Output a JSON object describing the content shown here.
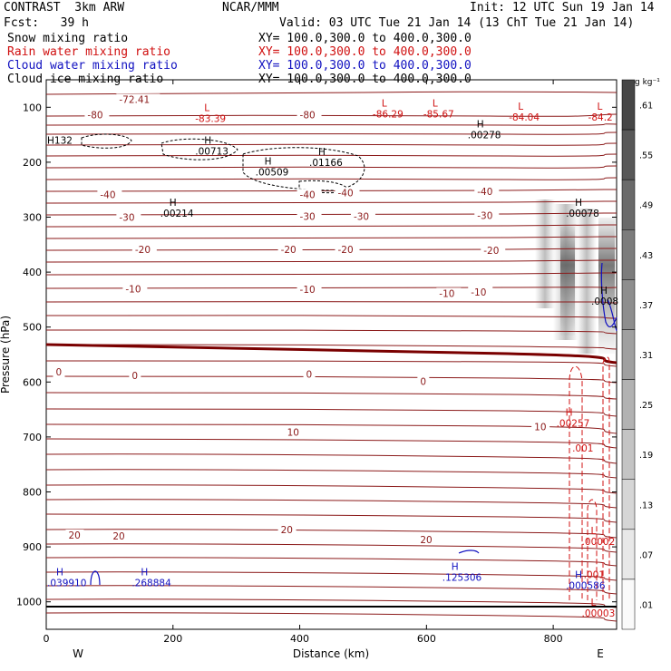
{
  "header": {
    "title_left": "CONTRAST  3km ARW",
    "title_center": "NCAR/MMM",
    "init": "Init: 12 UTC Sun 19 Jan 14",
    "fcst": "Fcst:   39 h",
    "valid": "Valid: 03 UTC Tue 21 Jan 14 (13 ChT Tue 21 Jan 14)",
    "fields": [
      {
        "name": "Snow mixing ratio",
        "xy": "XY= 100.0,300.0 to 400.0,300.0",
        "color": "#000000"
      },
      {
        "name": "Rain water mixing ratio",
        "xy": "XY= 100.0,300.0 to 400.0,300.0",
        "color": "#d01010"
      },
      {
        "name": "Cloud water mixing ratio",
        "xy": "XY= 100.0,300.0 to 400.0,300.0",
        "color": "#1010c0"
      },
      {
        "name": "Cloud ice mixing ratio",
        "xy": "XY= 100.0,300.0 to 400.0,300.0",
        "color": "#000000"
      }
    ]
  },
  "chart_data": {
    "type": "line",
    "xlabel": "Distance (km)",
    "ylabel": "Pressure (hPa)",
    "xlim": [
      0,
      900
    ],
    "ylim": [
      1050,
      50
    ],
    "x_ticks": [
      "0",
      "200",
      "400",
      "600",
      "800"
    ],
    "y_ticks": [
      "100",
      "200",
      "300",
      "400",
      "500",
      "600",
      "700",
      "800",
      "900",
      "1000"
    ],
    "x_end_labels": {
      "left": "W",
      "right": "E"
    },
    "colorbar": {
      "unit": "g kg⁻¹",
      "labels": [
        ".61",
        ".55",
        ".49",
        ".43",
        ".37",
        ".31",
        ".25",
        ".19",
        ".13",
        ".07",
        ".01"
      ]
    },
    "temperature_contour_labels": [
      {
        "text": "-72.41",
        "x": 115,
        "p": 87
      },
      {
        "text": "-80",
        "x": 65,
        "p": 115
      },
      {
        "text": "-80",
        "x": 400,
        "p": 115
      },
      {
        "text": "-40",
        "x": 85,
        "p": 260
      },
      {
        "text": "-40",
        "x": 400,
        "p": 260
      },
      {
        "text": "-40",
        "x": 460,
        "p": 257
      },
      {
        "text": "-40",
        "x": 680,
        "p": 255
      },
      {
        "text": "-30",
        "x": 115,
        "p": 302
      },
      {
        "text": "-30",
        "x": 400,
        "p": 300
      },
      {
        "text": "-30",
        "x": 485,
        "p": 300
      },
      {
        "text": "-30",
        "x": 680,
        "p": 298
      },
      {
        "text": "-20",
        "x": 140,
        "p": 360
      },
      {
        "text": "-20",
        "x": 370,
        "p": 360
      },
      {
        "text": "-20",
        "x": 460,
        "p": 360
      },
      {
        "text": "-20",
        "x": 690,
        "p": 362
      },
      {
        "text": "-10",
        "x": 125,
        "p": 432
      },
      {
        "text": "-10",
        "x": 400,
        "p": 433
      },
      {
        "text": "-10",
        "x": 620,
        "p": 440
      },
      {
        "text": "-10",
        "x": 670,
        "p": 438
      },
      {
        "text": "0",
        "x": 15,
        "p": 583
      },
      {
        "text": "0",
        "x": 135,
        "p": 590
      },
      {
        "text": "0",
        "x": 410,
        "p": 587
      },
      {
        "text": "0",
        "x": 590,
        "p": 600
      },
      {
        "text": "10",
        "x": 380,
        "p": 693
      },
      {
        "text": "10",
        "x": 770,
        "p": 683
      },
      {
        "text": "20",
        "x": 35,
        "p": 880
      },
      {
        "text": "20",
        "x": 105,
        "p": 882
      },
      {
        "text": "20",
        "x": 370,
        "p": 870
      },
      {
        "text": "20",
        "x": 590,
        "p": 888
      }
    ],
    "extrema_labels": [
      {
        "kind": "L",
        "value": "-83.39",
        "x": 235,
        "p": 110,
        "color": "#d01010"
      },
      {
        "kind": "L",
        "value": "-86.29",
        "x": 515,
        "p": 102,
        "color": "#d01010"
      },
      {
        "kind": "L",
        "value": "-85.67",
        "x": 595,
        "p": 102,
        "color": "#d01010"
      },
      {
        "kind": "L",
        "value": "-84.04",
        "x": 730,
        "p": 108,
        "color": "#d01010"
      },
      {
        "kind": "L",
        "value": "-84.2",
        "x": 855,
        "p": 108,
        "color": "#d01010"
      },
      {
        "kind": "",
        "value": "H132",
        "x": 0,
        "p": 150,
        "color": "#000000"
      },
      {
        "kind": "H",
        "value": ".00278",
        "x": 665,
        "p": 140,
        "color": "#000000"
      },
      {
        "kind": "H",
        "value": ".00713",
        "x": 235,
        "p": 170,
        "color": "#000000"
      },
      {
        "kind": "H",
        "value": ".01166",
        "x": 415,
        "p": 190,
        "color": "#000000"
      },
      {
        "kind": "H",
        "value": ".00509",
        "x": 330,
        "p": 208,
        "color": "#000000"
      },
      {
        "kind": "H",
        "value": ".00214",
        "x": 180,
        "p": 283,
        "color": "#000000"
      },
      {
        "kind": "H",
        "value": ".00078",
        "x": 820,
        "p": 283,
        "color": "#000000"
      },
      {
        "kind": "H",
        "value": ".0008",
        "x": 860,
        "p": 443,
        "color": "#000000"
      },
      {
        "kind": "H",
        "value": ".00257",
        "x": 805,
        "p": 665,
        "color": "#d01010"
      },
      {
        "kind": "",
        "value": ".001",
        "x": 830,
        "p": 710,
        "color": "#d01010"
      },
      {
        "kind": "L",
        "value": ".00002",
        "x": 845,
        "p": 880,
        "color": "#d01010"
      },
      {
        "kind": "",
        "value": ".001",
        "x": 848,
        "p": 940,
        "color": "#d01010"
      },
      {
        "kind": "L",
        "value": ".00003",
        "x": 845,
        "p": 1010,
        "color": "#d01010"
      },
      {
        "kind": "H",
        "value": ".039910",
        "x": 0,
        "p": 955,
        "color": "#1010c0"
      },
      {
        "kind": "H",
        "value": ".268884",
        "x": 135,
        "p": 955,
        "color": "#1010c0"
      },
      {
        "kind": "H",
        "value": ".125306",
        "x": 625,
        "p": 945,
        "color": "#1010c0"
      },
      {
        "kind": "H",
        "value": ".000586",
        "x": 820,
        "p": 960,
        "color": "#1010c0"
      }
    ],
    "colors": {
      "temperature": "#8b1a1a",
      "snow": "#000000",
      "rain": "#d01010",
      "cloud_water": "#1010c0",
      "cloud_ice_shading": "#808080"
    }
  }
}
